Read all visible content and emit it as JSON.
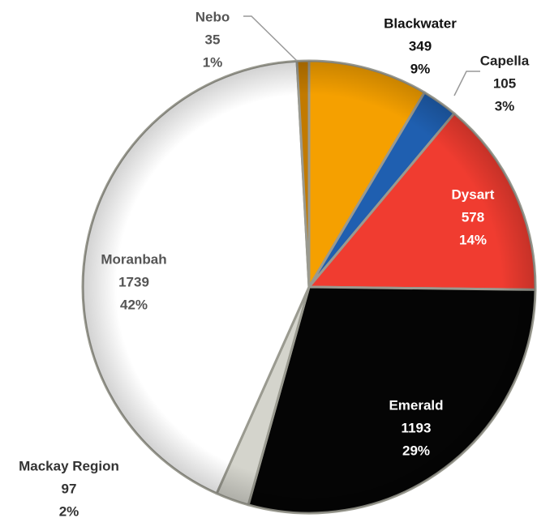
{
  "chart_data": {
    "type": "pie",
    "categories": [
      "Blackwater",
      "Capella",
      "Dysart",
      "Emerald",
      "Mackay Region",
      "Moranbah",
      "Nebo"
    ],
    "values": [
      349,
      105,
      578,
      1193,
      97,
      1739,
      35
    ],
    "percent_labels": [
      "9%",
      "3%",
      "14%",
      "29%",
      "2%",
      "42%",
      "1%"
    ],
    "colors": [
      "#f5a000",
      "#1f5fb0",
      "#f03c30",
      "#050505",
      "#d4d4cc",
      "#ffffff",
      "#c27a00"
    ]
  }
}
